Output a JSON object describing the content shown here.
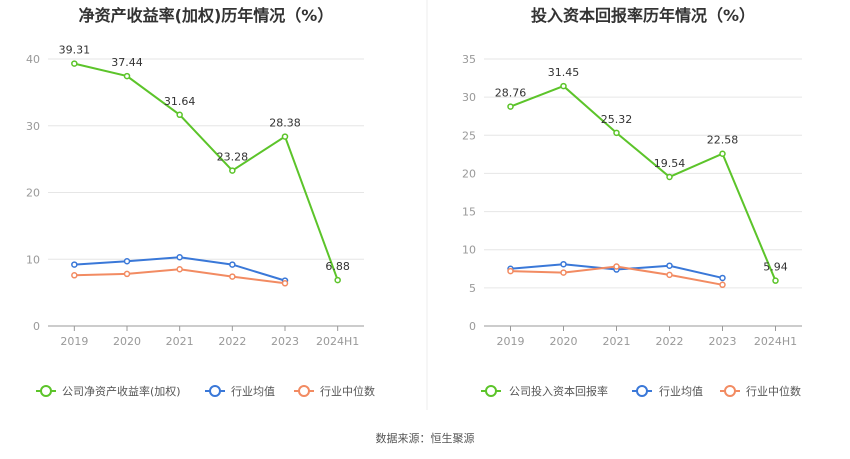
{
  "source_text": "数据来源：恒生聚源",
  "colors": {
    "company": "#5cc42a",
    "industry_avg": "#3a78d8",
    "industry_median": "#f28b62",
    "grid": "#e6e6e6",
    "axis": "#999999"
  },
  "chart_data": [
    {
      "type": "line",
      "title": "净资产收益率(加权)历年情况（%）",
      "categories": [
        "2019",
        "2020",
        "2021",
        "2022",
        "2023",
        "2024H1"
      ],
      "ylim": [
        0,
        40
      ],
      "yticks": [
        0,
        10,
        20,
        30,
        40
      ],
      "grid": true,
      "legend_position": "bottom",
      "series": [
        {
          "name": "公司净资产收益率(加权)",
          "color_key": "company",
          "values": [
            39.31,
            37.44,
            31.64,
            23.28,
            28.38,
            6.88
          ],
          "labels": [
            "39.31",
            "37.44",
            "31.64",
            "23.28",
            "28.38",
            "6.88"
          ]
        },
        {
          "name": "行业均值",
          "color_key": "industry_avg",
          "values": [
            9.2,
            9.7,
            10.3,
            9.2,
            6.8,
            null
          ]
        },
        {
          "name": "行业中位数",
          "color_key": "industry_median",
          "values": [
            7.6,
            7.8,
            8.5,
            7.4,
            6.4,
            null
          ]
        }
      ]
    },
    {
      "type": "line",
      "title": "投入资本回报率历年情况（%）",
      "categories": [
        "2019",
        "2020",
        "2021",
        "2022",
        "2023",
        "2024H1"
      ],
      "ylim": [
        0,
        35
      ],
      "yticks": [
        0,
        5,
        10,
        15,
        20,
        25,
        30,
        35
      ],
      "grid": true,
      "legend_position": "bottom",
      "series": [
        {
          "name": "公司投入资本回报率",
          "color_key": "company",
          "values": [
            28.76,
            31.45,
            25.32,
            19.54,
            22.58,
            5.94
          ],
          "labels": [
            "28.76",
            "31.45",
            "25.32",
            "19.54",
            "22.58",
            "5.94"
          ]
        },
        {
          "name": "行业均值",
          "color_key": "industry_avg",
          "values": [
            7.5,
            8.1,
            7.4,
            7.9,
            6.3,
            null
          ]
        },
        {
          "name": "行业中位数",
          "color_key": "industry_median",
          "values": [
            7.2,
            7.0,
            7.8,
            6.7,
            5.4,
            null
          ]
        }
      ]
    }
  ]
}
